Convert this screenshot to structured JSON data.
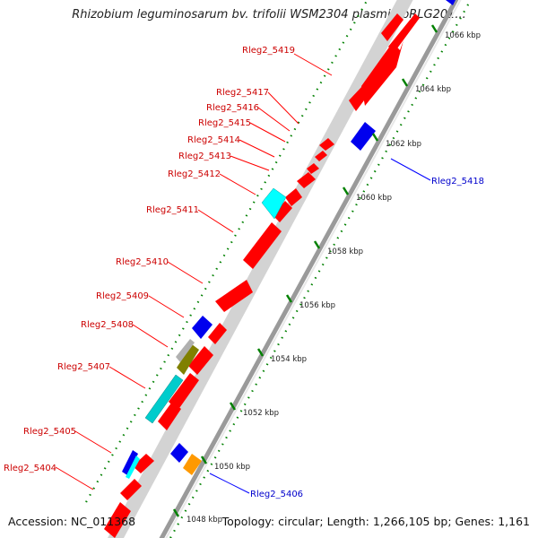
{
  "title": "Rhizobium leguminosarum bv. trifolii WSM2304 plasmid pRLG201...",
  "accession": "Accession: NC_011368",
  "topology": "Topology: circular; Length: 1,266,105 bp; Genes: 1,161",
  "colors": {
    "forward_red": "#ff0000",
    "reverse_blue": "#0000ff",
    "cyan": "#00ffff",
    "olive": "#808000",
    "orange": "#ff9900",
    "label_red": "#cc0000",
    "label_blue": "#0000cc",
    "tick_green": "#008000",
    "backbone": "#a0a0a0"
  },
  "ticks": [
    {
      "label": "1048 kbp"
    },
    {
      "label": "1050 kbp"
    },
    {
      "label": "1052 kbp"
    },
    {
      "label": "1054 kbp"
    },
    {
      "label": "1056 kbp"
    },
    {
      "label": "1058 kbp"
    },
    {
      "label": "1060 kbp"
    },
    {
      "label": "1062 kbp"
    },
    {
      "label": "1064 kbp"
    },
    {
      "label": "1066 kbp"
    }
  ],
  "genes_left": [
    {
      "label": "Rleg2_5404"
    },
    {
      "label": "Rleg2_5405"
    },
    {
      "label": "Rleg2_5407"
    },
    {
      "label": "Rleg2_5408"
    },
    {
      "label": "Rleg2_5409"
    },
    {
      "label": "Rleg2_5410"
    },
    {
      "label": "Rleg2_5411"
    },
    {
      "label": "Rleg2_5412"
    },
    {
      "label": "Rleg2_5413"
    },
    {
      "label": "Rleg2_5414"
    },
    {
      "label": "Rleg2_5415"
    },
    {
      "label": "Rleg2_5416"
    },
    {
      "label": "Rleg2_5417"
    },
    {
      "label": "Rleg2_5419"
    }
  ],
  "genes_right": [
    {
      "label": "Rleg2_5406"
    },
    {
      "label": "Rleg2_5418"
    }
  ]
}
